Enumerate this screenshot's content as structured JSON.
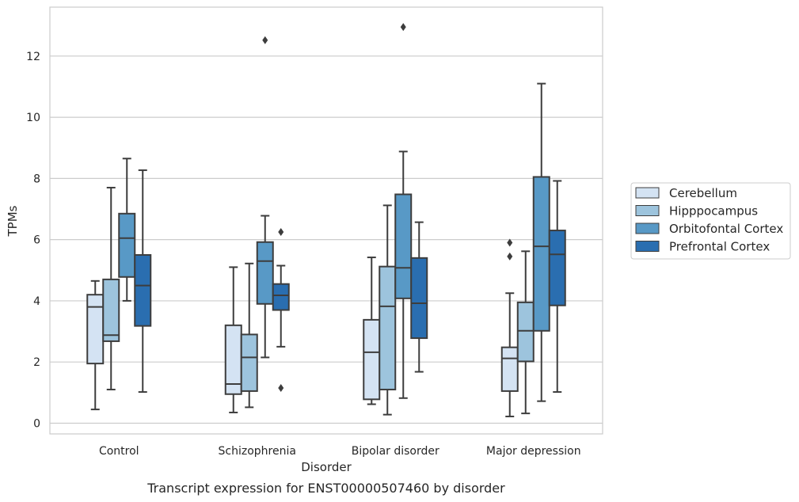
{
  "chart_data": {
    "type": "box",
    "title": "",
    "caption": "Transcript expression for ENST00000507460 by disorder",
    "xlabel": "Disorder",
    "ylabel": "TPMs",
    "ylim": [
      -0.35,
      13.6
    ],
    "yticks": [
      0,
      2,
      4,
      6,
      8,
      10,
      12
    ],
    "grid": "horizontal",
    "legend_position": "right",
    "categories": [
      "Control",
      "Schizophrenia",
      "Bipolar disorder",
      "Major depression"
    ],
    "series": [
      {
        "name": "Cerebellum",
        "color": "#d4e3f3",
        "boxes": [
          {
            "whislo": 0.45,
            "q1": 1.95,
            "med": 3.8,
            "q3": 4.2,
            "whishi": 4.65,
            "fliers": []
          },
          {
            "whislo": 0.35,
            "q1": 0.95,
            "med": 1.28,
            "q3": 3.2,
            "whishi": 5.1,
            "fliers": []
          },
          {
            "whislo": 0.62,
            "q1": 0.78,
            "med": 2.32,
            "q3": 3.38,
            "whishi": 5.42,
            "fliers": []
          },
          {
            "whislo": 0.22,
            "q1": 1.05,
            "med": 2.12,
            "q3": 2.48,
            "whishi": 4.25,
            "fliers": [
              5.9,
              5.45
            ]
          }
        ]
      },
      {
        "name": "Hipppocampus",
        "color": "#9dc4dd",
        "boxes": [
          {
            "whislo": 1.1,
            "q1": 2.68,
            "med": 2.88,
            "q3": 4.7,
            "whishi": 7.7,
            "fliers": []
          },
          {
            "whislo": 0.52,
            "q1": 1.05,
            "med": 2.15,
            "q3": 2.9,
            "whishi": 5.22,
            "fliers": []
          },
          {
            "whislo": 0.28,
            "q1": 1.1,
            "med": 3.82,
            "q3": 5.12,
            "whishi": 7.12,
            "fliers": []
          },
          {
            "whislo": 0.32,
            "q1": 2.02,
            "med": 3.02,
            "q3": 3.95,
            "whishi": 5.62,
            "fliers": []
          }
        ]
      },
      {
        "name": "Orbitofontal Cortex",
        "color": "#5899c6",
        "boxes": [
          {
            "whislo": 4.0,
            "q1": 4.78,
            "med": 6.05,
            "q3": 6.85,
            "whishi": 8.65,
            "fliers": []
          },
          {
            "whislo": 2.15,
            "q1": 3.9,
            "med": 5.3,
            "q3": 5.92,
            "whishi": 6.78,
            "fliers": [
              12.52
            ]
          },
          {
            "whislo": 0.82,
            "q1": 4.08,
            "med": 5.08,
            "q3": 7.48,
            "whishi": 8.88,
            "fliers": [
              12.95
            ]
          },
          {
            "whislo": 0.72,
            "q1": 3.02,
            "med": 5.78,
            "q3": 8.05,
            "whishi": 11.1,
            "fliers": []
          }
        ]
      },
      {
        "name": "Prefrontal Cortex",
        "color": "#2a6eb0",
        "boxes": [
          {
            "whislo": 1.02,
            "q1": 3.18,
            "med": 4.5,
            "q3": 5.5,
            "whishi": 8.27,
            "fliers": []
          },
          {
            "whislo": 2.5,
            "q1": 3.7,
            "med": 4.18,
            "q3": 4.55,
            "whishi": 5.15,
            "fliers": [
              6.25,
              1.15
            ]
          },
          {
            "whislo": 1.68,
            "q1": 2.78,
            "med": 3.92,
            "q3": 5.4,
            "whishi": 6.57,
            "fliers": []
          },
          {
            "whislo": 1.02,
            "q1": 3.85,
            "med": 5.52,
            "q3": 6.3,
            "whishi": 7.92,
            "fliers": []
          }
        ]
      }
    ]
  }
}
